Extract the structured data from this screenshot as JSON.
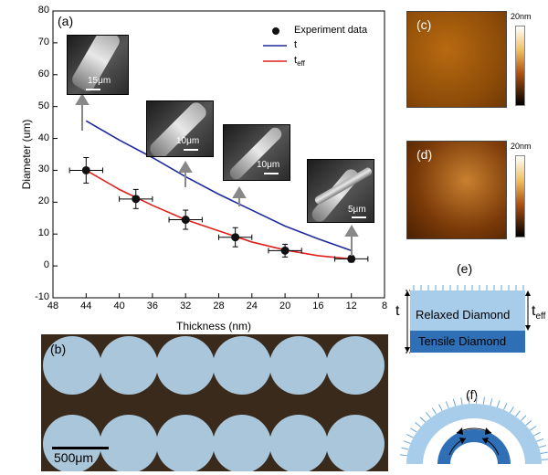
{
  "panel_a": {
    "label": "(a)",
    "chart_data": {
      "type": "scatter",
      "xlabel": "Thickness (nm)",
      "ylabel": "Diameter (um)",
      "xlim": [
        48,
        8
      ],
      "ylim": [
        -10,
        80
      ],
      "x_ticks": [
        "48",
        "44",
        "40",
        "36",
        "32",
        "28",
        "24",
        "20",
        "16",
        "12",
        "8"
      ],
      "y_ticks": [
        "-10",
        "0",
        "10",
        "20",
        "30",
        "40",
        "50",
        "60",
        "70",
        "80"
      ],
      "legend_position": "top-right",
      "series": [
        {
          "name": "Experiment data",
          "x": [
            44,
            38,
            32,
            26,
            20,
            12
          ],
          "y": [
            30,
            21,
            14.5,
            9,
            4.8,
            2.2
          ],
          "x_err": 2,
          "y_err": [
            4,
            3,
            3,
            3,
            2,
            1
          ],
          "color": "#000000"
        },
        {
          "name": "t",
          "x": [
            44,
            40,
            36,
            32,
            28,
            24,
            20,
            16,
            12
          ],
          "y": [
            45.5,
            39.5,
            34,
            28,
            22.5,
            17.5,
            12.5,
            8.5,
            4.8
          ],
          "color": "#1f2a9c"
        },
        {
          "name": "t_eff",
          "x": [
            44,
            40,
            36,
            32,
            28,
            24,
            20,
            16,
            12
          ],
          "y": [
            30,
            24,
            19,
            14.5,
            11,
            7.5,
            5,
            3.2,
            2.2
          ],
          "color": "#e0201b"
        }
      ]
    },
    "legend": {
      "data": "Experiment data",
      "t": "t",
      "teff_main": "t",
      "teff_sub": "eff"
    },
    "insets": [
      {
        "scale": "15μm"
      },
      {
        "scale": "10μm"
      },
      {
        "scale": "10μm"
      },
      {
        "scale": "5μm"
      }
    ]
  },
  "panel_b": {
    "label": "(b)",
    "scale": "500μm"
  },
  "panel_c": {
    "label": "(c)",
    "colorbar": "20nm"
  },
  "panel_d": {
    "label": "(d)",
    "colorbar": "20nm"
  },
  "panel_e": {
    "label": "(e)",
    "top_layer": "Relaxed Diamond",
    "bottom_layer": "Tensile Diamond",
    "t": "t",
    "teff_main": "t",
    "teff_sub": "eff"
  },
  "panel_f": {
    "label": "(f)"
  }
}
